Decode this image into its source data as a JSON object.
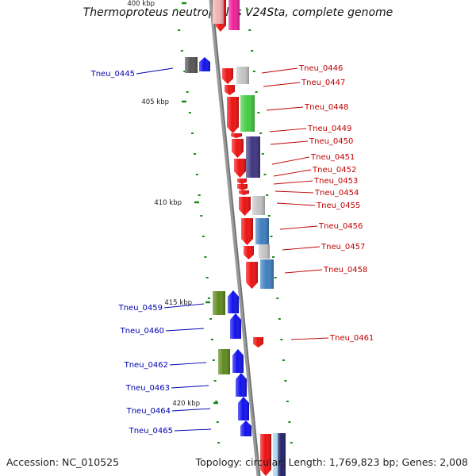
{
  "title": "Thermoproteus neutrophilus V24Sta, complete genome",
  "accession": "Accession: NC_010525",
  "topology": "Topology: circular; Length: 1,769,823 bp; Genes: 2,008",
  "colors": {
    "axis": "#9a9a9a",
    "axis_dark": "#6e6e6e",
    "tick": "#1a8a1a",
    "fwd_label": "#c00000",
    "rev_label": "#0000b0",
    "forward_gene": "#ee1111",
    "reverse_gene": "#1111ee",
    "pink": "#ee2299",
    "light_pink": "#f5b0b0",
    "light_gray": "#c4c4c4",
    "dark_gray": "#555555",
    "green": "#44cc44",
    "dark_purple": "#3d3580",
    "steel_blue": "#3f7fc0",
    "olive": "#5f8a1f",
    "navy": "#222266",
    "pale_blue": "#a9d6ef"
  },
  "ticks": [
    {
      "label": "400 kbp",
      "frac": 0.0
    },
    {
      "label": "405 kbp",
      "frac": 0.2392
    },
    {
      "label": "410 kbp",
      "frac": 0.4782
    },
    {
      "label": "415 kbp",
      "frac": 0.7165
    },
    {
      "label": "420 kbp",
      "frac": 0.9553
    }
  ],
  "forward_genes": [
    {
      "label": "Tneu_0446"
    },
    {
      "label": "Tneu_0447"
    },
    {
      "label": "Tneu_0448"
    },
    {
      "label": "Tneu_0449"
    },
    {
      "label": "Tneu_0450"
    },
    {
      "label": "Tneu_0451"
    },
    {
      "label": "Tneu_0452"
    },
    {
      "label": "Tneu_0453"
    },
    {
      "label": "Tneu_0454"
    },
    {
      "label": "Tneu_0455"
    },
    {
      "label": "Tneu_0456"
    },
    {
      "label": "Tneu_0457"
    },
    {
      "label": "Tneu_0458"
    },
    {
      "label": "Tneu_0461"
    }
  ],
  "reverse_genes": [
    {
      "label": "Tneu_0445"
    },
    {
      "label": "Tneu_0459"
    },
    {
      "label": "Tneu_0460"
    },
    {
      "label": "Tneu_0462"
    },
    {
      "label": "Tneu_0463"
    },
    {
      "label": "Tneu_0464"
    },
    {
      "label": "Tneu_0465"
    }
  ]
}
